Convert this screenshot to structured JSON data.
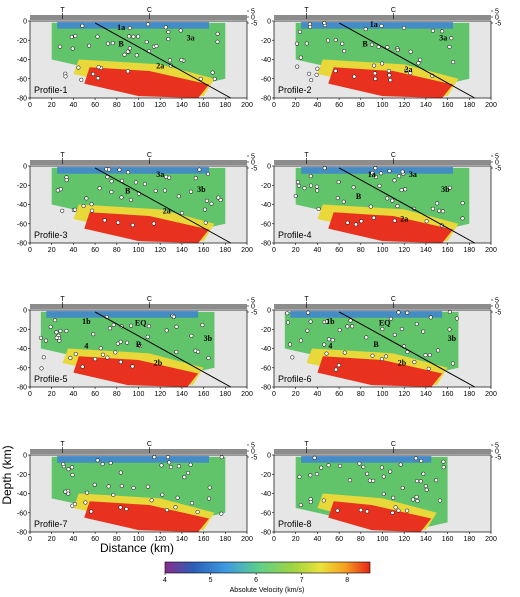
{
  "chart_data": {
    "type": "heatmap",
    "x_axis": {
      "label": "Distance (km)",
      "range": [
        0,
        200
      ],
      "ticks": [
        "0",
        "20",
        "40",
        "60",
        "80",
        "100",
        "120",
        "140",
        "160",
        "180",
        "200"
      ]
    },
    "y_axis": {
      "label": "Depth (km)",
      "range": [
        -80,
        0
      ],
      "ticks": [
        "0",
        "-20",
        "-40",
        "-60",
        "-80"
      ],
      "topography_range": [
        -5,
        5
      ],
      "topography_ticks": [
        "5",
        "0",
        "-5"
      ]
    },
    "colorbar": {
      "label": "Absolute Velocity (km/s)",
      "range": [
        4,
        8.5
      ],
      "ticks": [
        "4",
        "5",
        "6",
        "7",
        "8"
      ],
      "colors": [
        "#8a2c8c",
        "#2b5fb8",
        "#3d9be0",
        "#5fcf8a",
        "#9ed444",
        "#e9e23a",
        "#f5a020",
        "#e82418"
      ]
    },
    "panels": [
      {
        "name": "Profile-1",
        "labels": [
          "1a",
          "B",
          "3a",
          "2a"
        ],
        "markers": [
          "T",
          "C"
        ]
      },
      {
        "name": "Profile-2",
        "labels": [
          "1a",
          "B",
          "3a",
          "2a"
        ],
        "markers": [
          "T",
          "C"
        ]
      },
      {
        "name": "Profile-3",
        "labels": [
          "3a",
          "B",
          "3b",
          "2a"
        ],
        "markers": [
          "T",
          "C"
        ]
      },
      {
        "name": "Profile-4",
        "labels": [
          "1a",
          "3a",
          "B",
          "3b",
          "2a"
        ],
        "markers": [
          "T",
          "C"
        ]
      },
      {
        "name": "Profile-5",
        "labels": [
          "1b",
          "EQ",
          "4",
          "B",
          "3b",
          "2b"
        ],
        "markers": [
          "T",
          "C"
        ]
      },
      {
        "name": "Profile-6",
        "labels": [
          "1b",
          "EQ",
          "4",
          "B",
          "3b",
          "2b"
        ],
        "markers": [
          "T",
          "C"
        ]
      },
      {
        "name": "Profile-7",
        "labels": [],
        "markers": [
          "T",
          "C"
        ]
      },
      {
        "name": "Profile-8",
        "labels": [],
        "markers": [
          "T",
          "C"
        ]
      }
    ]
  }
}
